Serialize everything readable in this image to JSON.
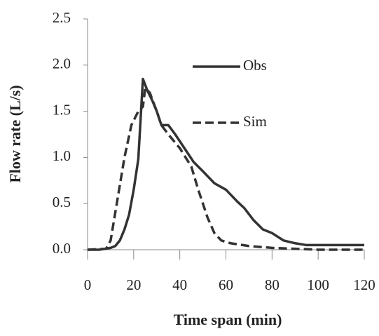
{
  "chart_data": {
    "type": "line",
    "x_label": "Time span (min)",
    "y_label": "Flow rate (L/s)",
    "xlim": [
      0,
      120
    ],
    "xticks": [
      0,
      20,
      40,
      60,
      80,
      100,
      120
    ],
    "ylim": [
      0,
      2.5
    ],
    "yticks": [
      {
        "value": 0,
        "label": "0.0"
      },
      0.5,
      {
        "value": 1,
        "label": "1.0"
      },
      1.5,
      {
        "value": 2,
        "label": "2.0"
      },
      2.5
    ],
    "legend": "upper-right",
    "series": [
      {
        "name": "Obs",
        "color": "#333333",
        "dash": "solid",
        "x": [
          0,
          5,
          10,
          12,
          14,
          16,
          18,
          20,
          22,
          24,
          26,
          28,
          30,
          32,
          35,
          38,
          42,
          46,
          50,
          55,
          60,
          65,
          68,
          72,
          76,
          80,
          85,
          90,
          95,
          100,
          110,
          120
        ],
        "values": [
          0,
          0,
          0.02,
          0.04,
          0.1,
          0.22,
          0.38,
          0.65,
          0.98,
          1.85,
          1.72,
          1.62,
          1.5,
          1.35,
          1.35,
          1.25,
          1.1,
          0.95,
          0.85,
          0.72,
          0.65,
          0.52,
          0.45,
          0.32,
          0.22,
          0.18,
          0.1,
          0.07,
          0.05,
          0.05,
          0.05,
          0.05
        ]
      },
      {
        "name": "Sim",
        "color": "#333333",
        "dash": "dashed",
        "x": [
          0,
          8,
          10,
          13,
          16,
          19,
          22,
          24,
          25,
          27,
          30,
          32,
          35,
          40,
          45,
          48,
          52,
          55,
          58,
          62,
          70,
          80,
          90,
          100,
          120
        ],
        "values": [
          0,
          0.01,
          0.1,
          0.55,
          1.0,
          1.35,
          1.5,
          1.55,
          1.75,
          1.7,
          1.5,
          1.35,
          1.25,
          1.1,
          0.9,
          0.65,
          0.35,
          0.18,
          0.1,
          0.07,
          0.04,
          0.02,
          0.01,
          0,
          0
        ]
      }
    ]
  }
}
